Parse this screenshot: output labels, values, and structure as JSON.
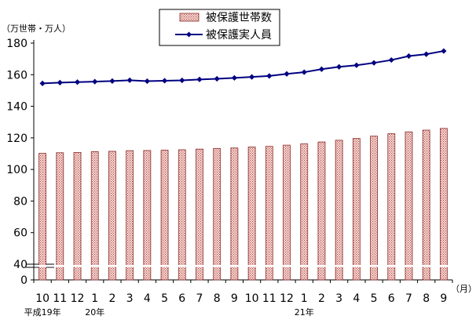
{
  "chart_data": {
    "type": "bar+line",
    "y_unit_label": "（万世帯・万人）",
    "x_unit_label": "（月）",
    "yticks": [
      "0",
      "40",
      "60",
      "80",
      "100",
      "120",
      "140",
      "160",
      "180"
    ],
    "axis_break": true,
    "ylim": [
      40,
      180
    ],
    "categories": [
      "10",
      "11",
      "12",
      "1",
      "2",
      "3",
      "4",
      "5",
      "6",
      "7",
      "8",
      "9",
      "10",
      "11",
      "12",
      "1",
      "2",
      "3",
      "4",
      "5",
      "6",
      "7",
      "8",
      "9"
    ],
    "year_labels": [
      {
        "index": 0,
        "text": "平成19年"
      },
      {
        "index": 3,
        "text": "20年"
      },
      {
        "index": 15,
        "text": "21年"
      }
    ],
    "legend_position": "top-center",
    "series": [
      {
        "name": "被保護世帯数",
        "type": "bar",
        "color": "#c0504d",
        "values": [
          110.2,
          110.6,
          110.8,
          111.3,
          111.5,
          111.9,
          112.0,
          112.2,
          112.5,
          112.9,
          113.3,
          113.6,
          114.2,
          114.6,
          115.4,
          116.2,
          117.4,
          118.5,
          119.6,
          121.1,
          122.6,
          123.8,
          124.9,
          126.0
        ]
      },
      {
        "name": "被保護実人員",
        "type": "line",
        "color": "#000080",
        "values": [
          154.5,
          155.0,
          155.3,
          155.6,
          156.0,
          156.5,
          155.9,
          156.2,
          156.4,
          157.0,
          157.4,
          158.0,
          158.6,
          159.2,
          160.5,
          161.6,
          163.5,
          165.0,
          166.0,
          167.5,
          169.3,
          171.8,
          173.0,
          175.0
        ]
      }
    ]
  }
}
